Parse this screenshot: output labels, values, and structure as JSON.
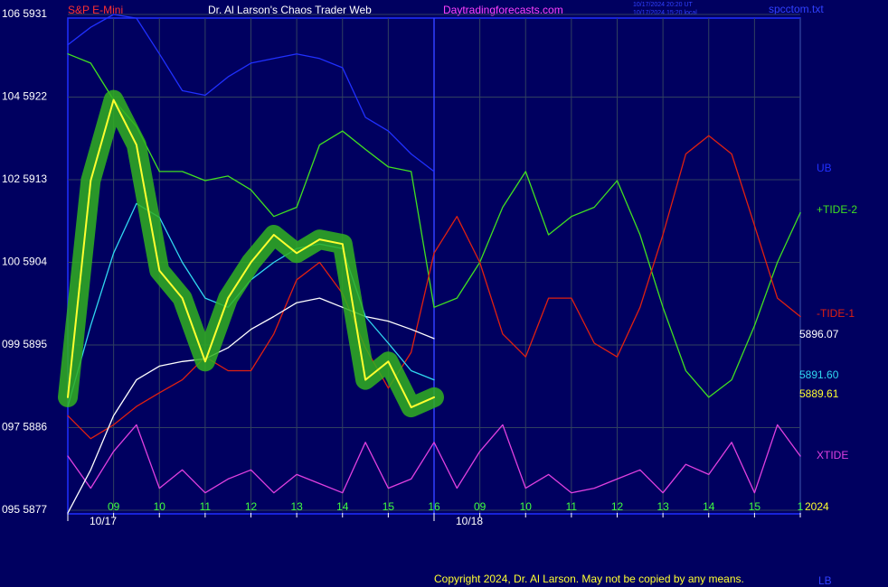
{
  "chart_data": {
    "type": "line",
    "title": "Dr. Al Larson's Chaos Trader Web",
    "subtitle": "S&P E-Mini",
    "site": "Daytradingforecasts.com",
    "stamp": [
      "10/17/2024 20:20 UT",
      "10/17/2024 15:20 local"
    ],
    "file": "spcctom.txt",
    "copyright": "Copyright 2024, Dr. Al Larson. May not be copied by any means.",
    "dates": [
      {
        "value": -1,
        "label": "10/17"
      },
      {
        "value": 7,
        "label": "10/18"
      }
    ],
    "ylim": [
      5877,
      5931
    ],
    "yticks": [
      {
        "value": 5931,
        "label": "106  5931"
      },
      {
        "value": 5922,
        "label": "104  5922"
      },
      {
        "value": 5913,
        "label": "102  5913"
      },
      {
        "value": 5904,
        "label": "100  5904"
      },
      {
        "value": 5895,
        "label": "099  5895"
      },
      {
        "value": 5886,
        "label": "097  5886"
      },
      {
        "value": 5877,
        "label": "095  5877"
      }
    ],
    "xlim": [
      -1,
      15
    ],
    "xticks": [
      {
        "value": 0,
        "label": "09"
      },
      {
        "value": 1,
        "label": "10"
      },
      {
        "value": 2,
        "label": "11"
      },
      {
        "value": 3,
        "label": "12"
      },
      {
        "value": 4,
        "label": "13"
      },
      {
        "value": 5,
        "label": "14"
      },
      {
        "value": 6,
        "label": "15"
      },
      {
        "value": 7,
        "label": "16"
      },
      {
        "value": 8,
        "label": "09"
      },
      {
        "value": 9,
        "label": "10"
      },
      {
        "value": 10,
        "label": "11"
      },
      {
        "value": 11,
        "label": "12"
      },
      {
        "value": 12,
        "label": "13"
      },
      {
        "value": 13,
        "label": "14"
      },
      {
        "value": 14,
        "label": "15"
      },
      {
        "value": 15,
        "label": "1"
      }
    ],
    "grid": true,
    "x": [
      -1,
      -0.5,
      0,
      0.5,
      1,
      1.5,
      2,
      2.5,
      3,
      3.5,
      4,
      4.5,
      5,
      5.5,
      6,
      6.5,
      7,
      7.5,
      8,
      8.5,
      9,
      9.5,
      10,
      10.5,
      11,
      11.5,
      12,
      12.5,
      13,
      13.5,
      14,
      14.5,
      15
    ],
    "series": [
      {
        "name": "UB",
        "color": "#2030ff",
        "values": [
          5927.7,
          5929.6,
          5931,
          5930.6,
          5926.7,
          5922.7,
          5922.2,
          5924.2,
          5925.7,
          5926.2,
          5926.7,
          5926.2,
          5925.2,
          5919.8,
          5918.3,
          5915.8,
          5913.9,
          null,
          null,
          null,
          null,
          null,
          null,
          null,
          null,
          null,
          null,
          null,
          null,
          null,
          null,
          null,
          null
        ]
      },
      {
        "name": "+TIDE-2",
        "color": "#40e020",
        "values": [
          5926.7,
          5925.7,
          5921.7,
          5918.8,
          5913.9,
          5913.9,
          5912.9,
          5913.4,
          5911.9,
          5909.0,
          5910.0,
          5916.8,
          5918.3,
          5916.3,
          5914.4,
          5913.9,
          5899.1,
          5900.1,
          5904.0,
          5910.0,
          5913.9,
          5907.0,
          5909.0,
          5910.0,
          5912.9,
          5907.0,
          5899.1,
          5892.2,
          5889.3,
          5891.2,
          5897.1,
          5904.0,
          5909.4
        ]
      },
      {
        "name": "-TIDE-1",
        "color": "#e02010",
        "values": [
          5887.3,
          5884.8,
          5886.3,
          5888.3,
          5889.8,
          5891.2,
          5893.7,
          5892.2,
          5892.2,
          5896.2,
          5902.1,
          5904.0,
          5900.6,
          5894.7,
          5890.3,
          5894.2,
          5905.0,
          5909.0,
          5904.0,
          5896.2,
          5893.7,
          5900.1,
          5900.1,
          5895.2,
          5893.7,
          5899.1,
          5907.0,
          5915.8,
          5917.8,
          5915.8,
          5908.0,
          5900.1,
          5898.1
        ]
      },
      {
        "name": "XTIDE",
        "color": "#e040e0",
        "values": [
          5882.9,
          5879.4,
          5883.4,
          5886.3,
          5879.4,
          5881.4,
          5878.9,
          5880.4,
          5881.4,
          5878.9,
          5880.9,
          5879.9,
          5878.9,
          5884.4,
          5879.4,
          5880.4,
          5884.4,
          5879.4,
          5883.4,
          5886.3,
          5879.4,
          5880.9,
          5878.9,
          5879.4,
          5880.4,
          5881.4,
          5878.9,
          5882.0,
          5880.9,
          5884.4,
          5878.9,
          5886.3,
          5882.9
        ]
      },
      {
        "color": "#ffffff",
        "last_label": "5896.07",
        "values": [
          5876.7,
          5881.4,
          5887.3,
          5891.2,
          5892.7,
          5893.2,
          5893.5,
          5894.7,
          5896.7,
          5898.1,
          5899.6,
          5900.1,
          5899.1,
          5898.1,
          5897.6,
          5896.7,
          5895.7,
          null,
          null,
          null,
          null,
          null,
          null,
          null,
          null,
          null,
          null,
          null,
          null,
          null,
          null,
          null,
          null
        ]
      },
      {
        "color": "#30d8f0",
        "last_label": "5891.60",
        "values": [
          5888.3,
          5897.1,
          5905.0,
          5910.4,
          5908.9,
          5904.0,
          5900.1,
          5899.1,
          5902.1,
          5904.0,
          5905.5,
          5906.0,
          5905.5,
          5898.1,
          5895.2,
          5892.2,
          5891.2,
          null,
          null,
          null,
          null,
          null,
          null,
          null,
          null,
          null,
          null,
          null,
          null,
          null,
          null,
          null,
          null
        ]
      },
      {
        "color": "#ffff30",
        "glow": "#30b020",
        "last_label": "5889.61",
        "values": [
          5889.3,
          5912.9,
          5921.7,
          5916.8,
          5903.1,
          5900.1,
          5893.2,
          5900.1,
          5904.0,
          5907.0,
          5905.0,
          5906.5,
          5906.0,
          5891.2,
          5893.2,
          5888.2,
          5889.3,
          null,
          null,
          null,
          null,
          null,
          null,
          null,
          null,
          null,
          null,
          null,
          null,
          null,
          null,
          null,
          null
        ]
      }
    ],
    "year": "2024",
    "lower_band": "LB"
  }
}
